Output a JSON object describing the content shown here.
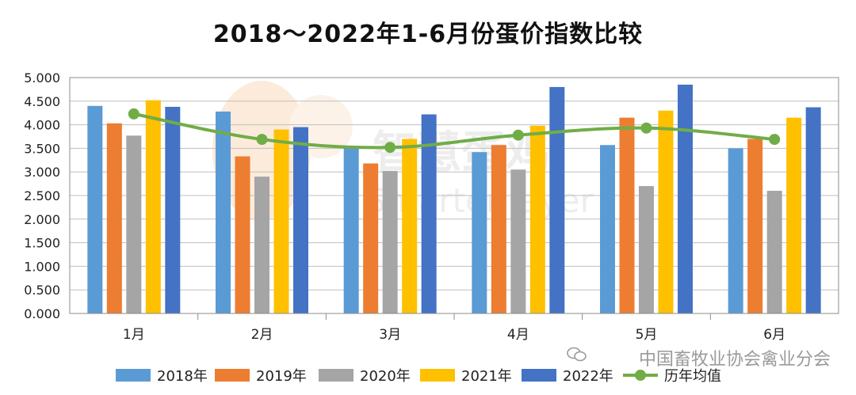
{
  "title": "2018～2022年1-6月份蛋价指数比较",
  "chart_data": {
    "type": "bar",
    "title": "2018～2022年1-6月份蛋价指数比较",
    "categories": [
      "1月",
      "2月",
      "3月",
      "4月",
      "5月",
      "6月"
    ],
    "ylim": [
      0,
      5.0
    ],
    "yticks": [
      "0.000",
      "0.500",
      "1.000",
      "1.500",
      "2.000",
      "2.500",
      "3.000",
      "3.500",
      "4.000",
      "4.500",
      "5.000"
    ],
    "grid": "horizontal",
    "legend_position": "bottom",
    "series": [
      {
        "name": "2018年",
        "type": "bar",
        "color": "#5B9BD5",
        "values": [
          4.4,
          4.28,
          3.55,
          3.42,
          3.57,
          3.5
        ]
      },
      {
        "name": "2019年",
        "type": "bar",
        "color": "#ED7D31",
        "values": [
          4.03,
          3.33,
          3.18,
          3.57,
          4.15,
          3.7
        ]
      },
      {
        "name": "2020年",
        "type": "bar",
        "color": "#A5A5A5",
        "values": [
          3.77,
          2.9,
          3.02,
          3.05,
          2.7,
          2.6
        ]
      },
      {
        "name": "2021年",
        "type": "bar",
        "color": "#FFC000",
        "values": [
          4.52,
          3.9,
          3.7,
          3.98,
          4.3,
          4.15
        ]
      },
      {
        "name": "2022年",
        "type": "bar",
        "color": "#4472C4",
        "values": [
          4.38,
          3.95,
          4.22,
          4.8,
          4.85,
          4.37
        ]
      },
      {
        "name": "历年均值",
        "type": "line",
        "color": "#70AD47",
        "values": [
          4.23,
          3.69,
          3.52,
          3.78,
          3.93,
          3.69
        ]
      }
    ]
  },
  "watermark": {
    "logo_text": "智慧蛋鸡",
    "logo_subtext": "Smarter layer",
    "source_text": "中国畜牧业协会禽业分会"
  }
}
